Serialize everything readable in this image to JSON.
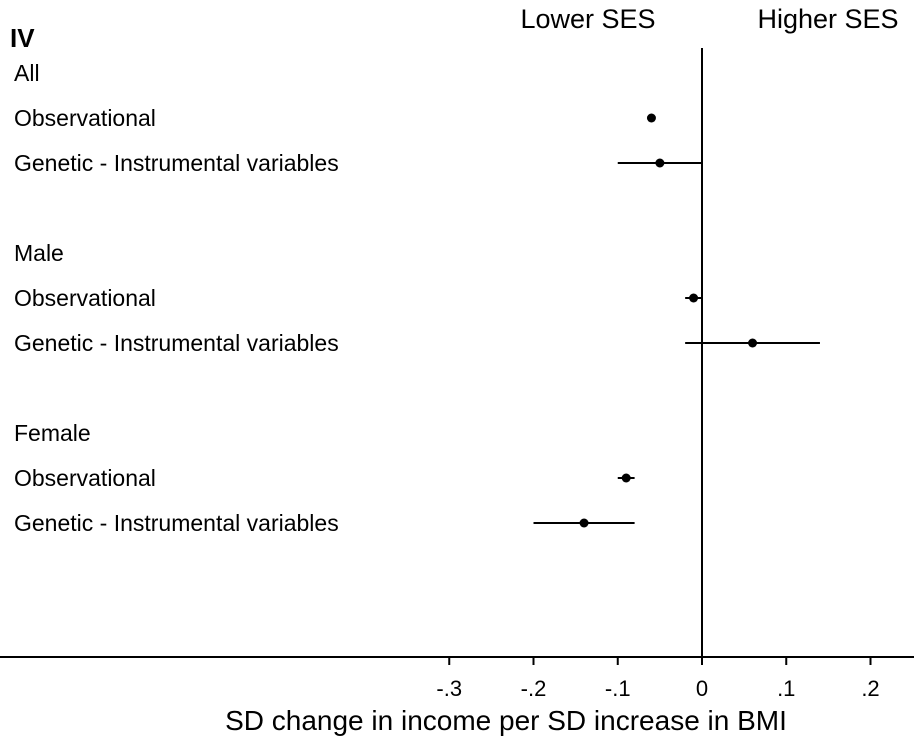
{
  "chart_data": {
    "type": "forest",
    "panel_label": "IV",
    "direction_labels": {
      "left": "Lower SES",
      "right": "Higher SES"
    },
    "xlabel": "SD change in income per SD increase in BMI",
    "xlim": [
      -0.45,
      0.25
    ],
    "ticks": [
      {
        "value": -0.3,
        "label": "-.3"
      },
      {
        "value": -0.2,
        "label": "-.2"
      },
      {
        "value": -0.1,
        "label": "-.1"
      },
      {
        "value": 0,
        "label": "0"
      },
      {
        "value": 0.1,
        "label": ".1"
      },
      {
        "value": 0.2,
        "label": ".2"
      }
    ],
    "reference_line": 0,
    "groups": [
      {
        "label": "All",
        "estimates": [
          {
            "label": "Observational",
            "estimate": -0.06,
            "ci_low": -0.062,
            "ci_high": -0.058
          },
          {
            "label": "Genetic - Instrumental variables",
            "estimate": -0.05,
            "ci_low": -0.1,
            "ci_high": 0.0
          }
        ]
      },
      {
        "label": "Male",
        "estimates": [
          {
            "label": "Observational",
            "estimate": -0.01,
            "ci_low": -0.02,
            "ci_high": 0.0
          },
          {
            "label": "Genetic - Instrumental variables",
            "estimate": 0.06,
            "ci_low": -0.02,
            "ci_high": 0.14
          }
        ]
      },
      {
        "label": "Female",
        "estimates": [
          {
            "label": "Observational",
            "estimate": -0.09,
            "ci_low": -0.1,
            "ci_high": -0.08
          },
          {
            "label": "Genetic - Instrumental variables",
            "estimate": -0.14,
            "ci_low": -0.2,
            "ci_high": -0.08
          }
        ]
      }
    ]
  }
}
